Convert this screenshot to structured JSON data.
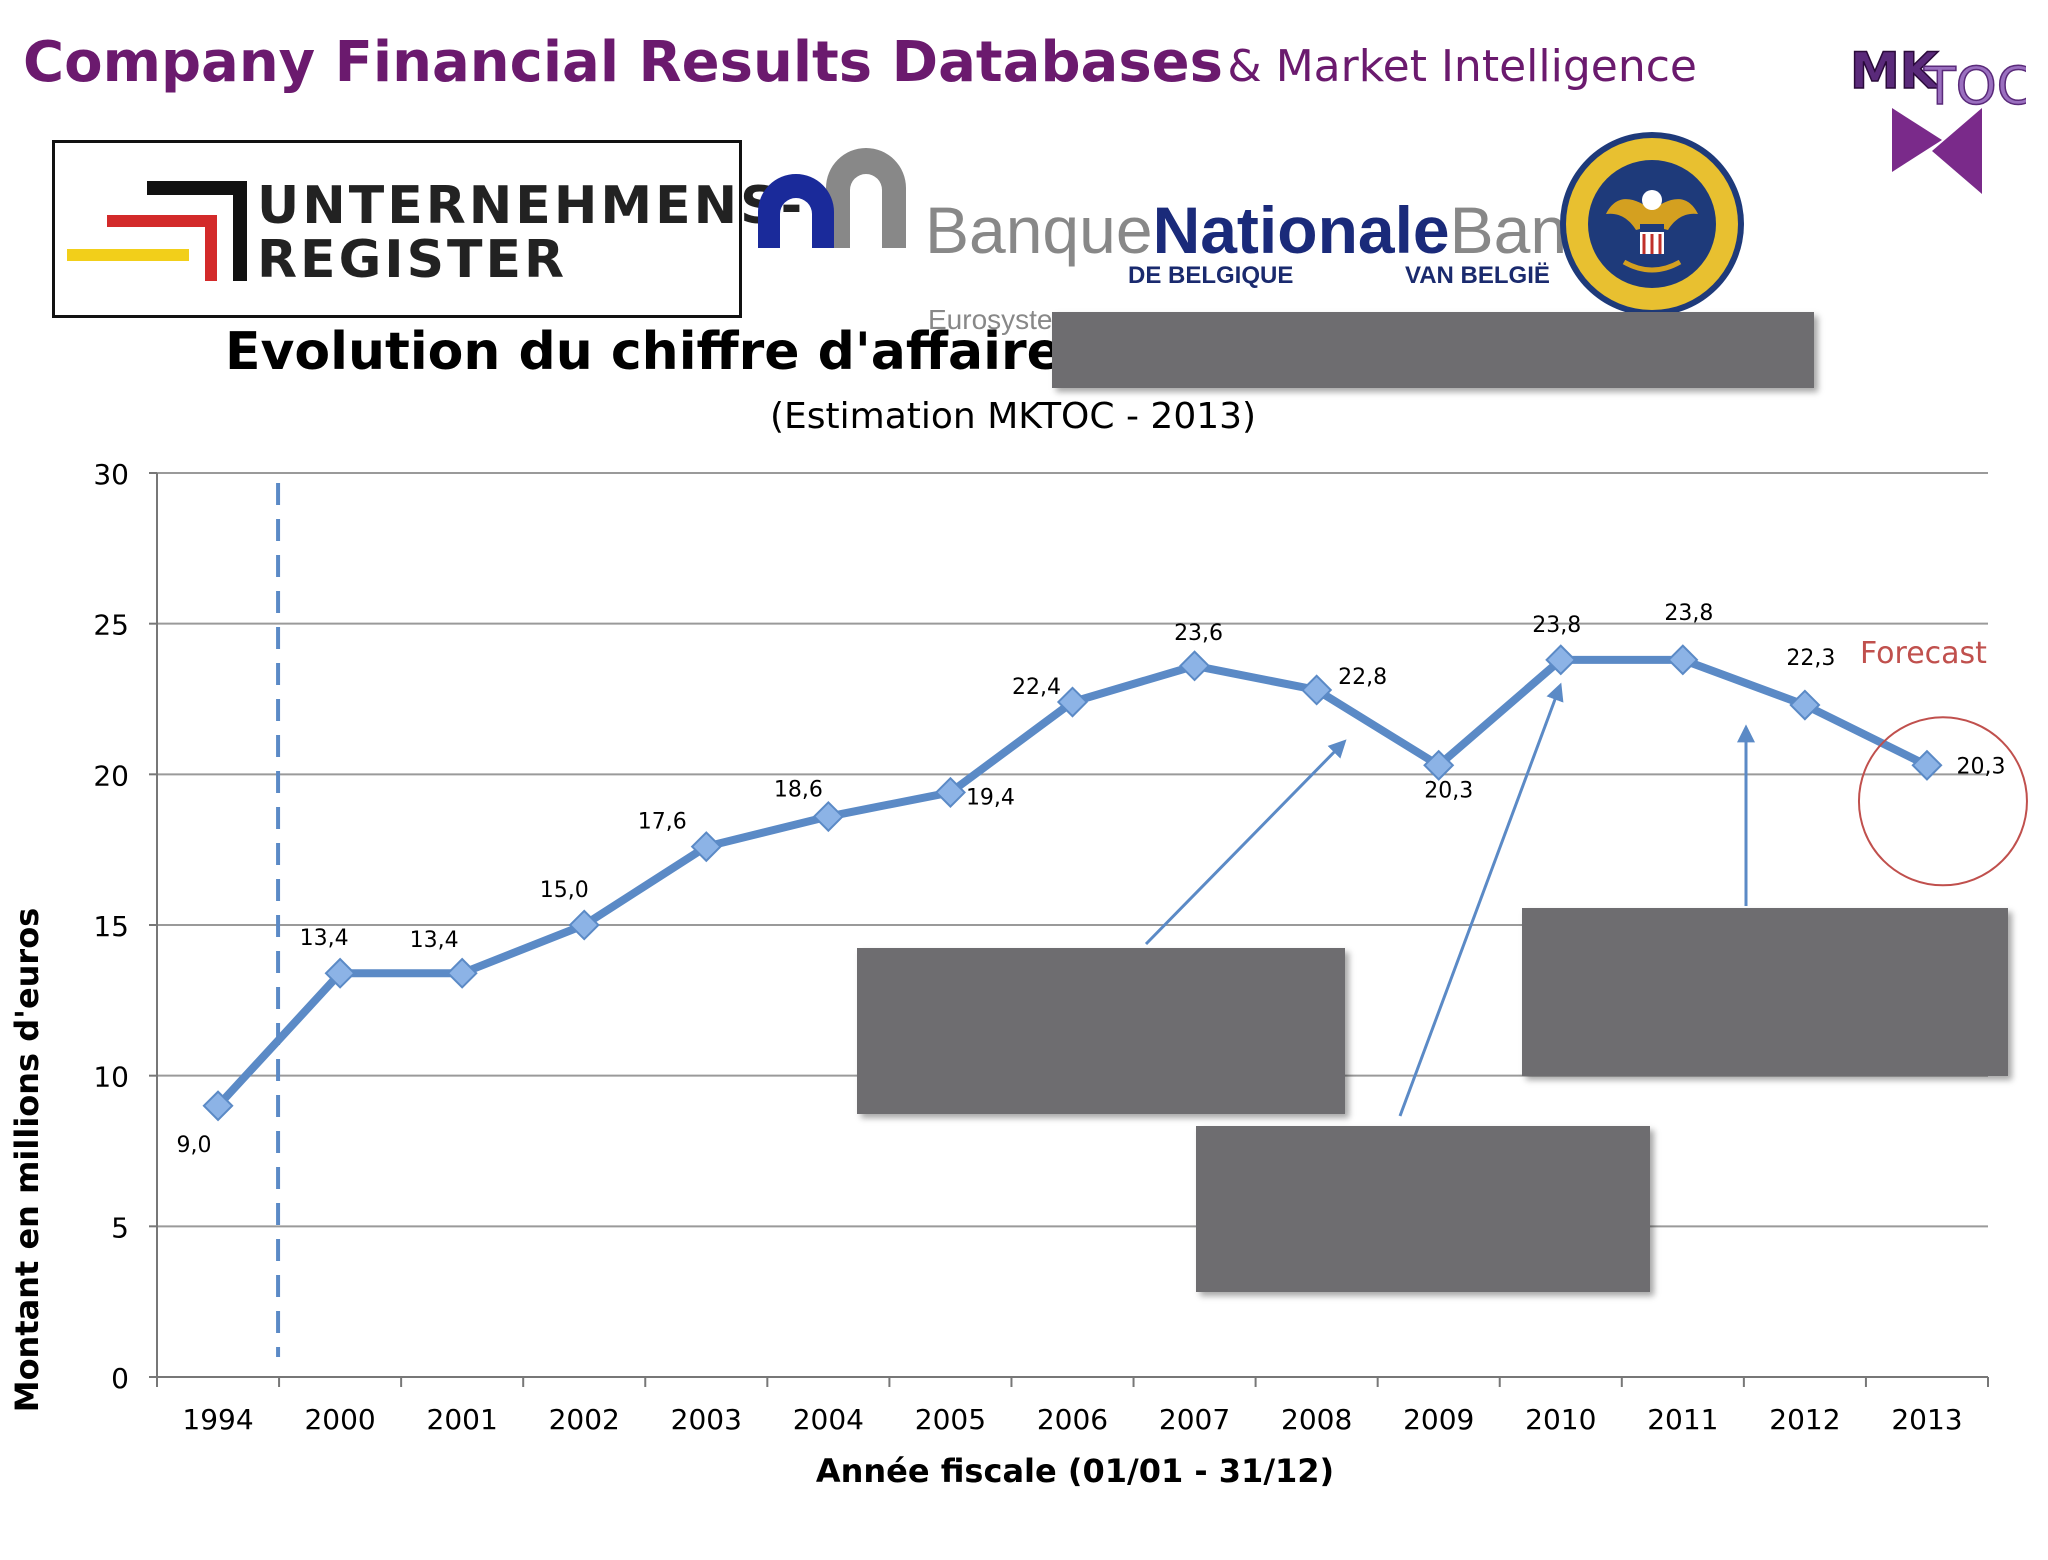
{
  "header": {
    "title_main": "Company Financial Results Databases",
    "title_sub": "& Market Intelligence"
  },
  "logos": {
    "mktoc": "MK TOC",
    "unternehmensregister": "UNTERNEHMENS- REGISTER",
    "bnb_left": "Banque",
    "bnb_mid": "Nationale",
    "bnb_right": "Bank",
    "bnb_left_sub": "DE BELGIQUE",
    "bnb_right_sub": "VAN BELGIË",
    "eurosystem": "Eurosyste",
    "sec_seal": "U.S. SECURITIES AND EXCHANGE COMMISSION MCMXXXIV"
  },
  "colors": {
    "header": "#6b1a6e",
    "series": "#5b8ac6",
    "marker": "#8cb3e6",
    "forecast": "#c0504d",
    "gridline": "#9a9a9a",
    "redaction": "#6e6d70"
  },
  "annotations": {
    "forecast_label": "Forecast"
  },
  "chart_data": {
    "type": "line",
    "title": "Evolution du chiffre d'affaires",
    "subtitle": "(Estimation MKTOC - 2013)",
    "xlabel": "Année fiscale (01/01 - 31/12)",
    "ylabel": "Montant en millions d'euros",
    "ylim": [
      0,
      30
    ],
    "yticks": [
      0,
      5,
      10,
      15,
      20,
      25,
      30
    ],
    "grid": true,
    "categories": [
      "1994",
      "2000",
      "2001",
      "2002",
      "2003",
      "2004",
      "2005",
      "2006",
      "2007",
      "2008",
      "2009",
      "2010",
      "2011",
      "2012",
      "2013"
    ],
    "series": [
      {
        "values": [
          9.0,
          13.4,
          13.4,
          15.0,
          17.6,
          18.6,
          19.4,
          22.4,
          23.6,
          22.8,
          20.3,
          23.8,
          23.8,
          22.3,
          20.3
        ],
        "data_labels": [
          "9,0",
          "13,4",
          "13,4",
          "15,0",
          "17,6",
          "18,6",
          "19,4",
          "22,4",
          "23,6",
          "22,8",
          "20,3",
          "23,8",
          "23,8",
          "22,3",
          "20,3"
        ]
      }
    ],
    "break_after_category": "1994",
    "forecast_category": "2013"
  }
}
